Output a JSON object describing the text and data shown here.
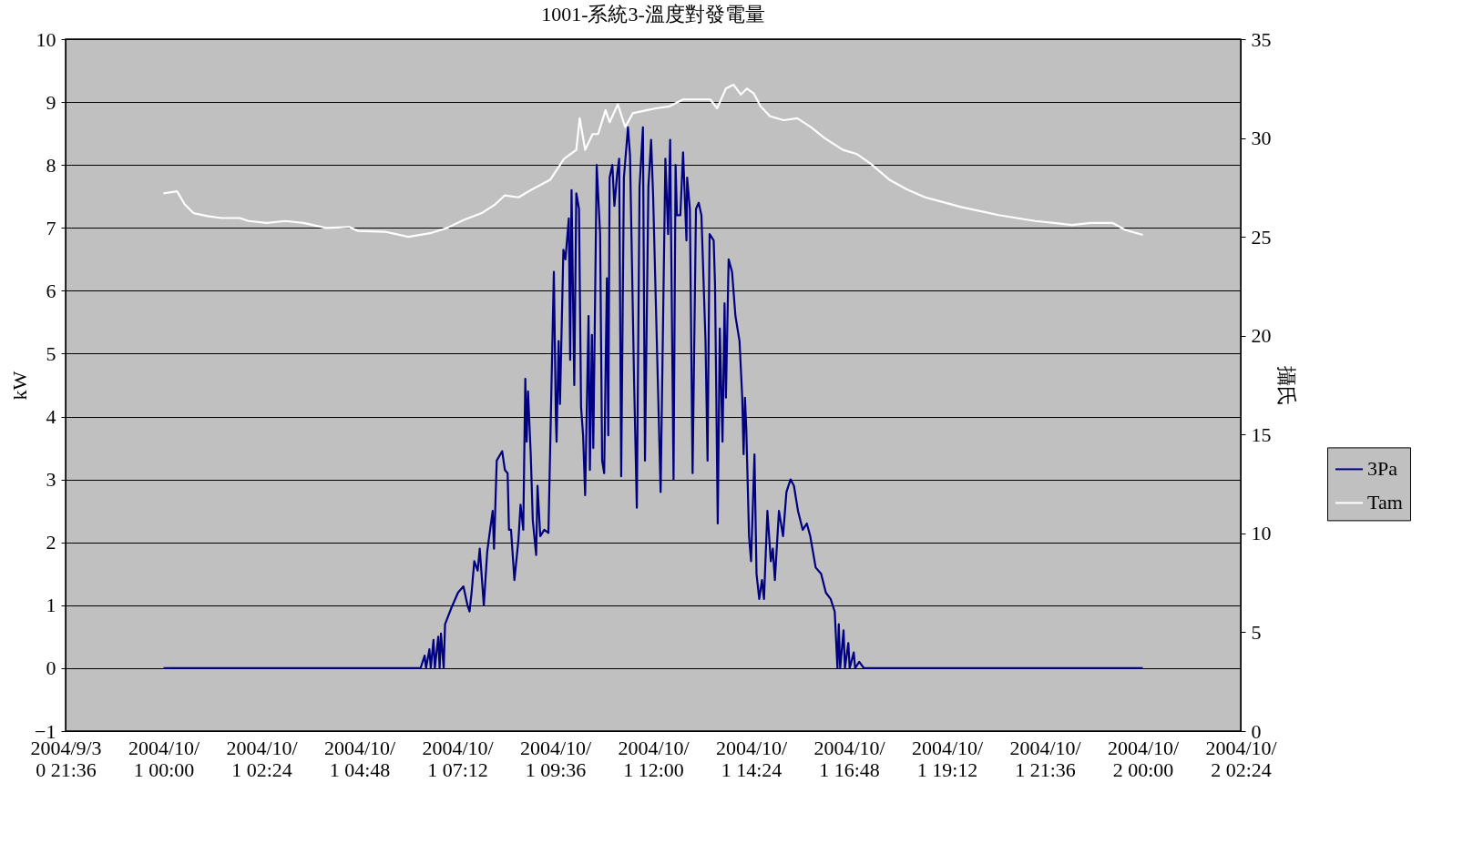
{
  "chart_data": {
    "type": "line",
    "title": "1001-系統3-溫度對發電量",
    "ylabel": "kW",
    "y2label": "攝氏",
    "xlim": [
      "2004-09-30T21:36",
      "2004-10-02T02:24"
    ],
    "xticks": [
      {
        "value": "2004-09-30T21:36",
        "label": "2004/9/30 21:36"
      },
      {
        "value": "2004-10-01T00:00",
        "label": "2004/10/1 00:00"
      },
      {
        "value": "2004-10-01T02:24",
        "label": "2004/10/1 02:24"
      },
      {
        "value": "2004-10-01T04:48",
        "label": "2004/10/1 04:48"
      },
      {
        "value": "2004-10-01T07:12",
        "label": "2004/10/1 07:12"
      },
      {
        "value": "2004-10-01T09:36",
        "label": "2004/10/1 09:36"
      },
      {
        "value": "2004-10-01T12:00",
        "label": "2004/10/1 12:00"
      },
      {
        "value": "2004-10-01T14:24",
        "label": "2004/10/1 14:24"
      },
      {
        "value": "2004-10-01T16:48",
        "label": "2004/10/1 16:48"
      },
      {
        "value": "2004-10-01T19:12",
        "label": "2004/10/1 19:12"
      },
      {
        "value": "2004-10-01T21:36",
        "label": "2004/10/1 21:36"
      },
      {
        "value": "2004-10-02T00:00",
        "label": "2004/10/2 00:00"
      },
      {
        "value": "2004-10-02T02:24",
        "label": "2004/10/2 02:24"
      }
    ],
    "ylim": [
      -1,
      10
    ],
    "yticks": [
      -1,
      0,
      1,
      2,
      3,
      4,
      5,
      6,
      7,
      8,
      9,
      10
    ],
    "y2lim": [
      0,
      35
    ],
    "y2ticks": [
      0,
      5,
      10,
      15,
      20,
      25,
      30,
      35
    ],
    "grid": "y",
    "legend": "right",
    "line_style": "solid",
    "marker": "none",
    "series": [
      {
        "name": "3Pa",
        "color": "#000080",
        "x": [
          "2004-10-01T00:00",
          "2004-10-01T06:18",
          "2004-10-01T06:24",
          "2004-10-01T06:26",
          "2004-10-01T06:31",
          "2004-10-01T06:33",
          "2004-10-01T06:37",
          "2004-10-01T06:39",
          "2004-10-01T06:44",
          "2004-10-01T06:46",
          "2004-10-01T06:48",
          "2004-10-01T06:52",
          "2004-10-01T06:54",
          "2004-10-01T07:03",
          "2004-10-01T07:13",
          "2004-10-01T07:21",
          "2004-10-01T07:27",
          "2004-10-01T07:30",
          "2004-10-01T07:33",
          "2004-10-01T07:37",
          "2004-10-01T07:42",
          "2004-10-01T07:45",
          "2004-10-01T07:51",
          "2004-10-01T07:56",
          "2004-10-01T07:59",
          "2004-10-01T08:04",
          "2004-10-01T08:06",
          "2004-10-01T08:10",
          "2004-10-01T08:18",
          "2004-10-01T08:22",
          "2004-10-01T08:26",
          "2004-10-01T08:28",
          "2004-10-01T08:31",
          "2004-10-01T08:36",
          "2004-10-01T08:42",
          "2004-10-01T08:45",
          "2004-10-01T08:49",
          "2004-10-01T08:52",
          "2004-10-01T08:54",
          "2004-10-01T08:56",
          "2004-10-01T09:00",
          "2004-10-01T09:03",
          "2004-10-01T09:08",
          "2004-10-01T09:10",
          "2004-10-01T09:14",
          "2004-10-01T09:20",
          "2004-10-01T09:26",
          "2004-10-01T09:34",
          "2004-10-01T09:37",
          "2004-10-01T09:38",
          "2004-10-01T09:41",
          "2004-10-01T09:43",
          "2004-10-01T09:48",
          "2004-10-01T09:51",
          "2004-10-01T09:56",
          "2004-10-01T09:58",
          "2004-10-01T10:00",
          "2004-10-01T10:04",
          "2004-10-01T10:07",
          "2004-10-01T10:11",
          "2004-10-01T10:14",
          "2004-10-01T10:17",
          "2004-10-01T10:20",
          "2004-10-01T10:25",
          "2004-10-01T10:27",
          "2004-10-01T10:30",
          "2004-10-01T10:32",
          "2004-10-01T10:37",
          "2004-10-01T10:42",
          "2004-10-01T10:45",
          "2004-10-01T10:48",
          "2004-10-01T10:52",
          "2004-10-01T10:54",
          "2004-10-01T10:56",
          "2004-10-01T11:00",
          "2004-10-01T11:03",
          "2004-10-01T11:07",
          "2004-10-01T11:10",
          "2004-10-01T11:13",
          "2004-10-01T11:17",
          "2004-10-01T11:23",
          "2004-10-01T11:26",
          "2004-10-01T11:32",
          "2004-10-01T11:36",
          "2004-10-01T11:40",
          "2004-10-01T11:45",
          "2004-10-01T11:48",
          "2004-10-01T11:53",
          "2004-10-01T11:57",
          "2004-10-01T12:00",
          "2004-10-01T12:11",
          "2004-10-01T12:18",
          "2004-10-01T12:22",
          "2004-10-01T12:25",
          "2004-10-01T12:30",
          "2004-10-01T12:33",
          "2004-10-01T12:35",
          "2004-10-01T12:40",
          "2004-10-01T12:44",
          "2004-10-01T12:49",
          "2004-10-01T12:50",
          "2004-10-01T12:54",
          "2004-10-01T12:58",
          "2004-10-01T13:03",
          "2004-10-01T13:07",
          "2004-10-01T13:11",
          "2004-10-01T13:17",
          "2004-10-01T13:20",
          "2004-10-01T13:23",
          "2004-10-01T13:29",
          "2004-10-01T13:31",
          "2004-10-01T13:35",
          "2004-10-01T13:38",
          "2004-10-01T13:42",
          "2004-10-01T13:45",
          "2004-10-01T13:47",
          "2004-10-01T13:51",
          "2004-10-01T13:56",
          "2004-10-01T14:01",
          "2004-10-01T14:07",
          "2004-10-01T14:11",
          "2004-10-01T14:13",
          "2004-10-01T14:15",
          "2004-10-01T14:17",
          "2004-10-01T14:21",
          "2004-10-01T14:24",
          "2004-10-01T14:29",
          "2004-10-01T14:32",
          "2004-10-01T14:36",
          "2004-10-01T14:40",
          "2004-10-01T14:43",
          "2004-10-01T14:48",
          "2004-10-01T14:53",
          "2004-10-01T14:56",
          "2004-10-01T14:59",
          "2004-10-01T15:05",
          "2004-10-01T15:11",
          "2004-10-01T15:16",
          "2004-10-01T15:22",
          "2004-10-01T15:27",
          "2004-10-01T15:33",
          "2004-10-01T15:40",
          "2004-10-01T15:46",
          "2004-10-01T15:51",
          "2004-10-01T15:59",
          "2004-10-01T16:07",
          "2004-10-01T16:14",
          "2004-10-01T16:21",
          "2004-10-01T16:27",
          "2004-10-01T16:31",
          "2004-10-01T16:33",
          "2004-10-01T16:35",
          "2004-10-01T16:40",
          "2004-10-01T16:42",
          "2004-10-01T16:47",
          "2004-10-01T16:49",
          "2004-10-01T16:55",
          "2004-10-01T16:57",
          "2004-10-01T17:03",
          "2004-10-01T17:10",
          "2004-10-02T00:00"
        ],
        "values": [
          0,
          0,
          0.2,
          0,
          0.3,
          0,
          0.45,
          0,
          0.5,
          0,
          0.55,
          0,
          0.7,
          0.95,
          1.2,
          1.3,
          1.0,
          0.9,
          1.2,
          1.7,
          1.55,
          1.9,
          1.0,
          1.85,
          2.1,
          2.5,
          1.9,
          3.3,
          3.45,
          3.15,
          3.1,
          2.2,
          2.2,
          1.4,
          2.05,
          2.6,
          2.2,
          4.6,
          3.6,
          4.4,
          3.4,
          2.35,
          1.8,
          2.9,
          2.1,
          2.2,
          2.15,
          6.3,
          3.95,
          3.6,
          5.2,
          4.2,
          6.65,
          6.5,
          7.15,
          4.9,
          7.6,
          4.5,
          7.55,
          7.3,
          4.15,
          3.7,
          2.75,
          5.6,
          3.15,
          5.3,
          3.5,
          8.0,
          6.9,
          3.3,
          3.1,
          6.2,
          3.7,
          7.8,
          8.0,
          7.35,
          7.85,
          8.1,
          3.05,
          7.8,
          8.6,
          8.15,
          4.55,
          2.55,
          7.65,
          8.6,
          3.3,
          7.65,
          8.4,
          7.5,
          2.8,
          8.1,
          6.9,
          8.4,
          3.0,
          8.0,
          7.2,
          7.2,
          8.2,
          6.8,
          7.8,
          7.3,
          3.1,
          7.3,
          7.4,
          7.2,
          5.2,
          3.3,
          6.9,
          6.8,
          6.1,
          2.3,
          5.4,
          3.6,
          5.8,
          4.3,
          6.5,
          6.3,
          5.6,
          5.2,
          4.3,
          3.4,
          4.3,
          3.8,
          2.1,
          1.7,
          3.4,
          1.5,
          1.1,
          1.4,
          1.1,
          2.5,
          1.7,
          1.9,
          1.4,
          2.5,
          2.1,
          2.8,
          3.0,
          2.9,
          2.5,
          2.2,
          2.3,
          2.1,
          1.6,
          1.5,
          1.2,
          1.1,
          0.9,
          0,
          0.7,
          0,
          0.6,
          0,
          0.4,
          0,
          0.25,
          0,
          0.1,
          0,
          0
        ]
      },
      {
        "name": "Tam",
        "color": "#ffffff",
        "axis": "y2",
        "x": [
          "2004-10-01T00:00",
          "2004-10-01T00:20",
          "2004-10-01T00:31",
          "2004-10-01T00:44",
          "2004-10-01T01:05",
          "2004-10-01T01:25",
          "2004-10-01T01:52",
          "2004-10-01T02:05",
          "2004-10-01T02:32",
          "2004-10-01T02:59",
          "2004-10-01T03:26",
          "2004-10-01T03:59",
          "2004-10-01T04:33",
          "2004-10-01T04:46",
          "2004-10-01T05:27",
          "2004-10-01T06:00",
          "2004-10-01T06:34",
          "2004-10-01T06:57",
          "2004-10-01T07:21",
          "2004-10-01T07:48",
          "2004-10-01T08:08",
          "2004-10-01T08:22",
          "2004-10-01T08:42",
          "2004-10-01T09:02",
          "2004-10-01T09:29",
          "2004-10-01T09:49",
          "2004-10-01T10:07",
          "2004-10-01T10:12",
          "2004-10-01T10:20",
          "2004-10-01T10:31",
          "2004-10-01T10:39",
          "2004-10-01T10:50",
          "2004-10-01T10:56",
          "2004-10-01T11:08",
          "2004-10-01T11:19",
          "2004-10-01T11:30",
          "2004-10-01T11:50",
          "2004-10-01T12:04",
          "2004-10-01T12:24",
          "2004-10-01T12:44",
          "2004-10-01T13:04",
          "2004-10-01T13:24",
          "2004-10-01T13:34",
          "2004-10-01T13:47",
          "2004-10-01T13:58",
          "2004-10-01T14:09",
          "2004-10-01T14:18",
          "2004-10-01T14:28",
          "2004-10-01T14:38",
          "2004-10-01T14:52",
          "2004-10-01T15:12",
          "2004-10-01T15:32",
          "2004-10-01T15:52",
          "2004-10-01T16:12",
          "2004-10-01T16:39",
          "2004-10-01T16:59",
          "2004-10-01T17:20",
          "2004-10-01T17:47",
          "2004-10-01T18:13",
          "2004-10-01T18:40",
          "2004-10-01T19:07",
          "2004-10-01T19:34",
          "2004-10-01T20:01",
          "2004-10-01T20:28",
          "2004-10-01T20:55",
          "2004-10-01T21:22",
          "2004-10-01T21:49",
          "2004-10-01T22:16",
          "2004-10-01T22:43",
          "2004-10-01T23:16",
          "2004-10-01T23:34",
          "2004-10-02T00:00"
        ],
        "values": [
          27.2,
          27.3,
          26.65,
          26.2,
          26.05,
          25.95,
          25.95,
          25.8,
          25.7,
          25.8,
          25.7,
          25.45,
          25.5,
          25.3,
          25.25,
          25.0,
          25.2,
          25.45,
          25.85,
          26.2,
          26.65,
          27.1,
          27.0,
          27.4,
          27.9,
          28.95,
          29.4,
          31.0,
          29.4,
          30.2,
          30.2,
          31.4,
          30.8,
          31.7,
          30.55,
          31.25,
          31.4,
          31.5,
          31.6,
          31.95,
          31.95,
          31.95,
          31.5,
          32.5,
          32.7,
          32.2,
          32.5,
          32.25,
          31.6,
          31.1,
          30.9,
          31.0,
          30.55,
          30.0,
          29.4,
          29.2,
          28.7,
          27.9,
          27.4,
          27.0,
          26.75,
          26.5,
          26.3,
          26.1,
          25.95,
          25.8,
          25.7,
          25.6,
          25.7,
          25.7,
          25.35,
          25.1
        ]
      }
    ]
  }
}
